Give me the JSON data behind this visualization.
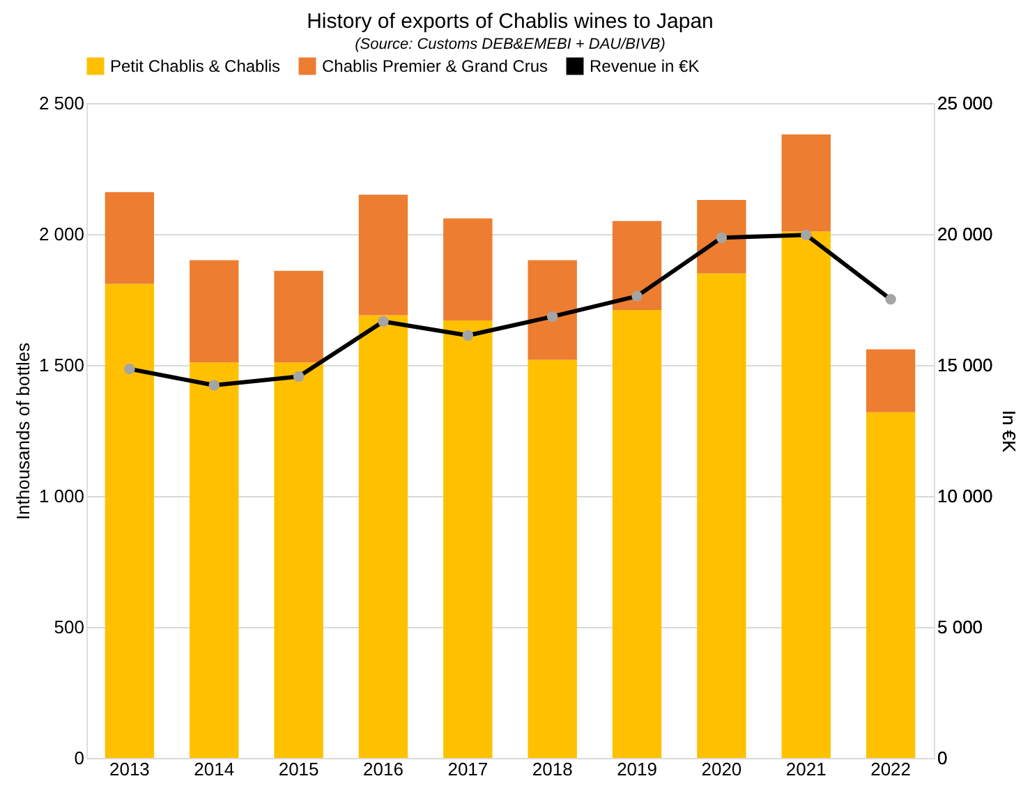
{
  "chart_data": {
    "type": "bar",
    "title": "History of exports of Chablis wines to Japan",
    "subtitle": "(Source: Customs DEB&EMEBI + DAU/BIVB)",
    "categories": [
      "2013",
      "2014",
      "2015",
      "2016",
      "2017",
      "2018",
      "2019",
      "2020",
      "2021",
      "2022"
    ],
    "stacked": true,
    "ylabel": "Inthousands of bottles",
    "y2label": "In €K",
    "series": [
      {
        "name": "Petit Chablis & Chablis",
        "color": "#ffc000",
        "values": [
          1810,
          1510,
          1510,
          1690,
          1670,
          1520,
          1710,
          1850,
          2010,
          1320
        ]
      },
      {
        "name": "Chablis Premier & Grand Crus",
        "color": "#ed7d31",
        "values": [
          350,
          390,
          350,
          460,
          390,
          380,
          340,
          280,
          370,
          240
        ]
      },
      {
        "name": "Revenue in €K",
        "type": "line",
        "axis": "y2",
        "color": "#000000",
        "marker": "circle",
        "values": [
          14850,
          14230,
          14560,
          16660,
          16130,
          16850,
          17630,
          19860,
          19970,
          17510
        ]
      }
    ],
    "ylim": [
      0,
      2500
    ],
    "yticks": [
      0,
      500,
      {
        "value": 1000,
        "label": "1 000"
      },
      {
        "value": 1500,
        "label": "1 500"
      },
      {
        "value": 2000,
        "label": "2 000"
      },
      {
        "value": 2500,
        "label": "2 500"
      }
    ],
    "y2lim": [
      0,
      25000
    ],
    "y2ticks": [
      0,
      {
        "value": 5000,
        "label": "5 000"
      },
      {
        "value": 10000,
        "label": "10 000"
      },
      {
        "value": 15000,
        "label": "15 000"
      },
      {
        "value": 20000,
        "label": "20 000"
      },
      {
        "value": 25000,
        "label": "25 000"
      }
    ],
    "grid": "y",
    "legend": "top"
  }
}
